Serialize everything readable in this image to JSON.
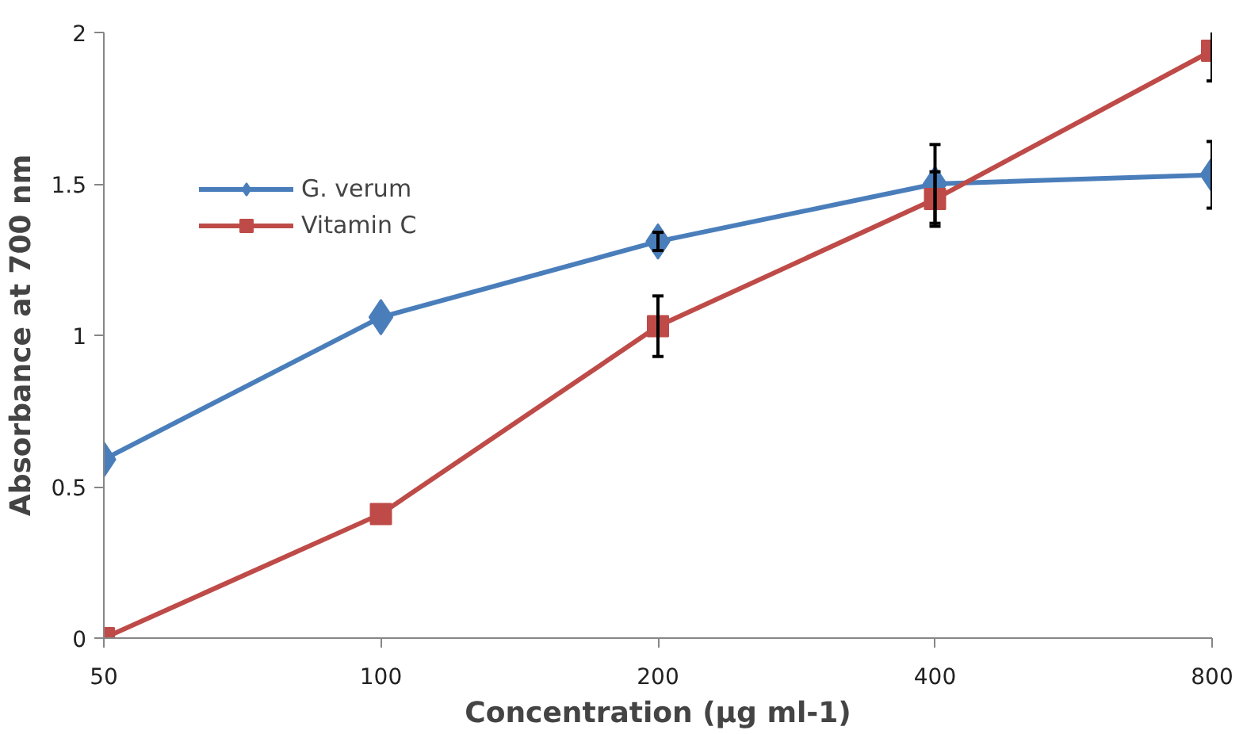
{
  "chart_data": {
    "type": "line",
    "xlabel": "Concentration (µg ml-1)",
    "ylabel": "Absorbance at 700 nm",
    "categories": [
      "50",
      "100",
      "200",
      "400",
      "800"
    ],
    "series": [
      {
        "name": "G. verum",
        "color": "#4a7ebb",
        "marker": "diamond",
        "values": [
          0.59,
          1.06,
          1.31,
          1.5,
          1.53
        ],
        "errors": [
          null,
          null,
          0.03,
          0.13,
          0.11
        ]
      },
      {
        "name": "Vitamin C",
        "color": "#be4b48",
        "marker": "square",
        "values": [
          0,
          0.41,
          1.03,
          1.45,
          1.94
        ],
        "errors": [
          null,
          null,
          0.1,
          0.09,
          0.1
        ]
      }
    ],
    "ylim": [
      0,
      2
    ],
    "yticks": [
      0,
      0.5,
      1,
      1.5,
      2
    ],
    "grid": false,
    "legend": "top left",
    "line_style": "solid"
  }
}
